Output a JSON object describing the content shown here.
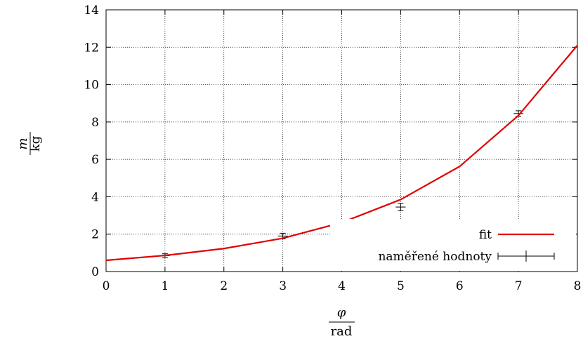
{
  "chart_data": {
    "type": "scatter",
    "xlabel": {
      "numerator": "φ",
      "denominator": "rad"
    },
    "ylabel": {
      "numerator": "m",
      "denominator": "kg"
    },
    "xlim": [
      0,
      8
    ],
    "ylim": [
      0,
      14
    ],
    "xticks": [
      "0",
      "1",
      "2",
      "3",
      "4",
      "5",
      "6",
      "7",
      "8"
    ],
    "yticks": [
      "0",
      "2",
      "4",
      "6",
      "8",
      "10",
      "12",
      "14"
    ],
    "grid": true,
    "legend_position": "bottom-right",
    "series": [
      {
        "name": "fit",
        "kind": "line",
        "color": "#e00000",
        "x": [
          0,
          1,
          2,
          3,
          4,
          5,
          6,
          7,
          8
        ],
        "y": [
          0.6,
          0.86,
          1.23,
          1.78,
          2.62,
          3.85,
          5.62,
          8.35,
          12.1
        ]
      },
      {
        "name": "naměřené hodnoty",
        "kind": "errorbar",
        "color": "#000000",
        "points": [
          {
            "x": 1,
            "y": 0.85,
            "y_lo": 0.75,
            "y_hi": 0.95
          },
          {
            "x": 3,
            "y": 1.9,
            "y_lo": 1.75,
            "y_hi": 2.05
          },
          {
            "x": 5,
            "y": 3.45,
            "y_lo": 3.25,
            "y_hi": 3.65
          },
          {
            "x": 7,
            "y": 8.45,
            "y_lo": 8.3,
            "y_hi": 8.6
          }
        ]
      }
    ]
  }
}
